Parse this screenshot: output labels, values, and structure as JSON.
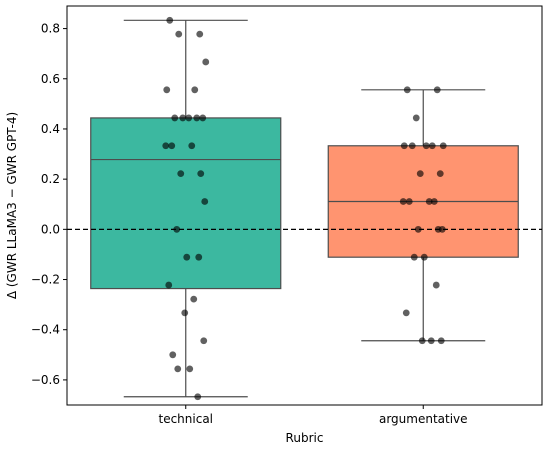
{
  "chart_data": {
    "type": "box",
    "title": "",
    "xlabel": "Rubric",
    "ylabel": "Δ (GWR LLaMA3 − GWR GPT-4)",
    "categories": [
      "technical",
      "argumentative"
    ],
    "ylim": [
      -0.7,
      0.89
    ],
    "yticks": [
      -0.6,
      -0.4,
      -0.2,
      0.0,
      0.2,
      0.4,
      0.6,
      0.8
    ],
    "ytick_labels": [
      "−0.6",
      "−0.4",
      "−0.2",
      "0.0",
      "0.2",
      "0.4",
      "0.6",
      "0.8"
    ],
    "grid": false,
    "reference_line": {
      "y": 0.0,
      "style": "dashed",
      "color": "#000000"
    },
    "boxes": [
      {
        "category": "technical",
        "color": "#3cb8a0",
        "whisker_low": -0.667,
        "q1": -0.236,
        "median": 0.278,
        "q3": 0.444,
        "whisker_high": 0.833
      },
      {
        "category": "argumentative",
        "color": "#ff9470",
        "whisker_low": -0.444,
        "q1": -0.111,
        "median": 0.111,
        "q3": 0.333,
        "whisker_high": 0.556
      }
    ],
    "points": [
      {
        "category": "technical",
        "values": [
          0.833,
          0.778,
          0.778,
          0.667,
          0.556,
          0.556,
          0.444,
          0.444,
          0.444,
          0.444,
          0.444,
          0.333,
          0.333,
          0.333,
          0.222,
          0.222,
          0.111,
          0.0,
          -0.111,
          -0.111,
          -0.222,
          -0.278,
          -0.333,
          -0.444,
          -0.5,
          -0.556,
          -0.556,
          -0.667
        ]
      },
      {
        "category": "argumentative",
        "values": [
          0.556,
          0.556,
          0.444,
          0.333,
          0.333,
          0.333,
          0.333,
          0.333,
          0.222,
          0.222,
          0.111,
          0.111,
          0.111,
          0.111,
          0.0,
          0.0,
          0.0,
          -0.111,
          -0.111,
          -0.222,
          -0.333,
          -0.444,
          -0.444,
          -0.444
        ]
      }
    ],
    "point_color": "#000000",
    "box_edge_color": "#4d4d4d"
  }
}
